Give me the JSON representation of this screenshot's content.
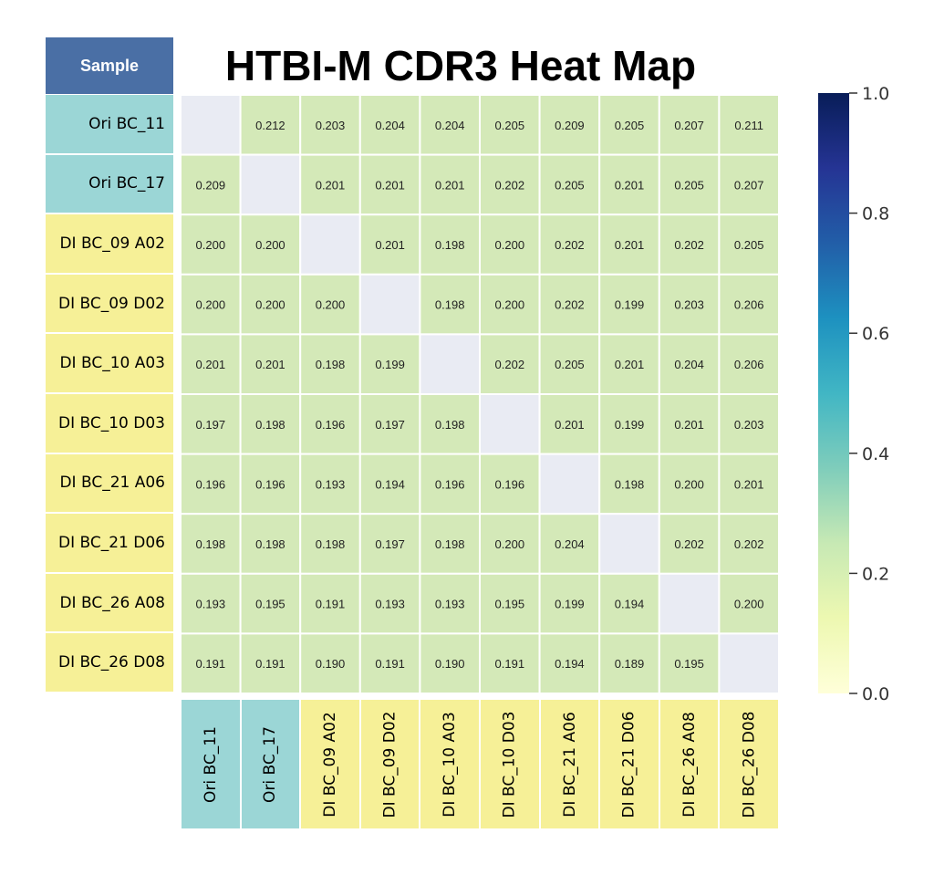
{
  "chart_data": {
    "type": "heatmap",
    "title": "HTBI-M CDR3 Heat Map",
    "corner_label": "Sample",
    "rows": [
      "Ori BC_11",
      "Ori BC_17",
      "DI BC_09 A02",
      "DI BC_09 D02",
      "DI BC_10 A03",
      "DI BC_10 D03",
      "DI BC_21 A06",
      "DI BC_21 D06",
      "DI BC_26 A08",
      "DI BC_26 D08"
    ],
    "columns": [
      "Ori BC_11",
      "Ori BC_17",
      "DI BC_09 A02",
      "DI BC_09 D02",
      "DI BC_10 A03",
      "DI BC_10 D03",
      "DI BC_21 A06",
      "DI BC_21 D06",
      "DI BC_26 A08",
      "DI BC_26 D08"
    ],
    "values": [
      [
        null,
        0.212,
        0.203,
        0.204,
        0.204,
        0.205,
        0.209,
        0.205,
        0.207,
        0.211
      ],
      [
        0.209,
        null,
        0.201,
        0.201,
        0.201,
        0.202,
        0.205,
        0.201,
        0.205,
        0.207
      ],
      [
        0.2,
        0.2,
        null,
        0.201,
        0.198,
        0.2,
        0.202,
        0.201,
        0.202,
        0.205
      ],
      [
        0.2,
        0.2,
        0.2,
        null,
        0.198,
        0.2,
        0.202,
        0.199,
        0.203,
        0.206
      ],
      [
        0.201,
        0.201,
        0.198,
        0.199,
        null,
        0.202,
        0.205,
        0.201,
        0.204,
        0.206
      ],
      [
        0.197,
        0.198,
        0.196,
        0.197,
        0.198,
        null,
        0.201,
        0.199,
        0.201,
        0.203
      ],
      [
        0.196,
        0.196,
        0.193,
        0.194,
        0.196,
        0.196,
        null,
        0.198,
        0.2,
        0.201
      ],
      [
        0.198,
        0.198,
        0.198,
        0.197,
        0.198,
        0.2,
        0.204,
        null,
        0.202,
        0.202
      ],
      [
        0.193,
        0.195,
        0.191,
        0.193,
        0.193,
        0.195,
        0.199,
        0.194,
        null,
        0.2
      ],
      [
        0.191,
        0.191,
        0.19,
        0.191,
        0.19,
        0.191,
        0.194,
        0.189,
        0.195,
        null
      ]
    ],
    "value_format": "3 decimals",
    "colorbar": {
      "colormap": "YlGnBu",
      "range": [
        0.0,
        1.0
      ],
      "ticks": [
        0.0,
        0.2,
        0.4,
        0.6,
        0.8,
        1.0
      ],
      "tick_labels": [
        "0.0",
        "0.2",
        "0.4",
        "0.6",
        "0.8",
        "1.0"
      ],
      "placement": "right"
    },
    "label_groups": [
      "ori",
      "ori",
      "di",
      "di",
      "di",
      "di",
      "di",
      "di",
      "di",
      "di"
    ]
  },
  "colors": {
    "sample_header": "#4a6fa5",
    "ori_label": "#9bd6d6",
    "di_label": "#f6f097",
    "cell": "#d4e9b8",
    "diagonal_empty": "#e9ebf3",
    "grid_line": "#ffffff",
    "colormap_stops": [
      "#ffffd9",
      "#edf8b1",
      "#c7e9b4",
      "#7fcdbb",
      "#41b6c4",
      "#1d91c0",
      "#225ea8",
      "#253494",
      "#081d58"
    ]
  }
}
